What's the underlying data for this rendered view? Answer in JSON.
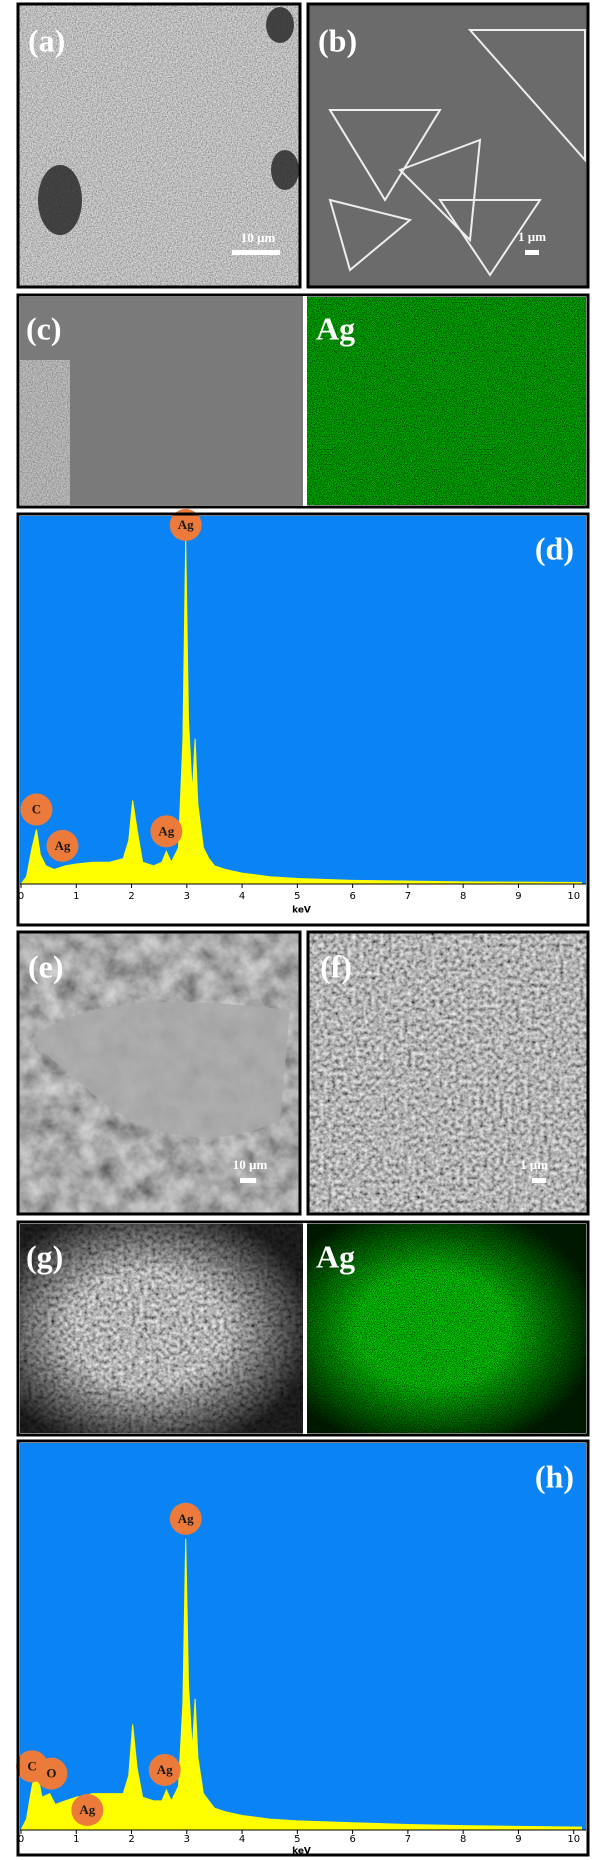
{
  "panels": {
    "a": {
      "label": "(a)",
      "scale_bar": "10 µm"
    },
    "b": {
      "label": "(b)",
      "scale_bar": "1 µm"
    },
    "c": {
      "label": "(c)"
    },
    "c_map": {
      "label": "Ag"
    },
    "e": {
      "label": "(e)",
      "scale_bar": "10 µm"
    },
    "f": {
      "label": "(f)",
      "scale_bar": "1 µm"
    },
    "g": {
      "label": "(g)"
    },
    "g_map": {
      "label": "Ag"
    }
  },
  "spectra": [
    {
      "label": "(d)",
      "x_label": "keV",
      "xlim": [
        0,
        10.15
      ],
      "xticks": [
        0,
        1,
        2,
        3,
        4,
        5,
        6,
        7,
        8,
        9,
        10
      ],
      "ylim": [
        0,
        100
      ],
      "x": [
        0.0,
        0.1,
        0.2,
        0.28,
        0.35,
        0.45,
        0.6,
        0.8,
        1.0,
        1.3,
        1.6,
        1.85,
        1.95,
        2.02,
        2.1,
        2.2,
        2.4,
        2.55,
        2.63,
        2.72,
        2.85,
        2.93,
        2.98,
        3.03,
        3.1,
        3.15,
        3.2,
        3.3,
        3.4,
        3.5,
        3.7,
        4.0,
        4.5,
        5.0,
        6.0,
        7.0,
        8.0,
        9.0,
        10.15
      ],
      "values": [
        0,
        2,
        10,
        15,
        8,
        5,
        4,
        5,
        5.5,
        6,
        6,
        7,
        12,
        23,
        15,
        6,
        5,
        6,
        9,
        6,
        10,
        40,
        95,
        45,
        25,
        40,
        22,
        10,
        7,
        5,
        4,
        3,
        2,
        1.5,
        1,
        0.8,
        0.6,
        0.5,
        0.4
      ],
      "peaks": [
        {
          "label": "C",
          "x": 0.28
        },
        {
          "label": "Ag",
          "x": 0.75
        },
        {
          "label": "Ag",
          "x": 2.63
        },
        {
          "label": "Ag",
          "x": 2.98
        }
      ]
    },
    {
      "label": "(h)",
      "x_label": "keV",
      "xlim": [
        0,
        10.15
      ],
      "xticks": [
        0,
        1,
        2,
        3,
        4,
        5,
        6,
        7,
        8,
        9,
        10
      ],
      "ylim": [
        0,
        100
      ],
      "x": [
        0.0,
        0.1,
        0.2,
        0.28,
        0.38,
        0.52,
        0.62,
        0.8,
        1.0,
        1.3,
        1.6,
        1.85,
        1.95,
        2.02,
        2.1,
        2.2,
        2.4,
        2.55,
        2.63,
        2.72,
        2.85,
        2.93,
        2.98,
        3.03,
        3.1,
        3.15,
        3.2,
        3.3,
        3.4,
        3.5,
        3.7,
        4.0,
        4.5,
        5.0,
        6.0,
        7.0,
        8.0,
        9.0,
        10.15
      ],
      "values": [
        0,
        3,
        12,
        17,
        9,
        10,
        7,
        8,
        9,
        10,
        10,
        10,
        15,
        29,
        17,
        9,
        8,
        8,
        11,
        8,
        12,
        35,
        80,
        40,
        22,
        36,
        20,
        10,
        8,
        6,
        5,
        4,
        3,
        2.5,
        2,
        1.5,
        1.2,
        1,
        0.8
      ],
      "peaks": [
        {
          "label": "C",
          "x": 0.2
        },
        {
          "label": "O",
          "x": 0.55
        },
        {
          "label": "Ag",
          "x": 1.2
        },
        {
          "label": "Ag",
          "x": 2.6
        },
        {
          "label": "Ag",
          "x": 2.98
        }
      ]
    }
  ]
}
